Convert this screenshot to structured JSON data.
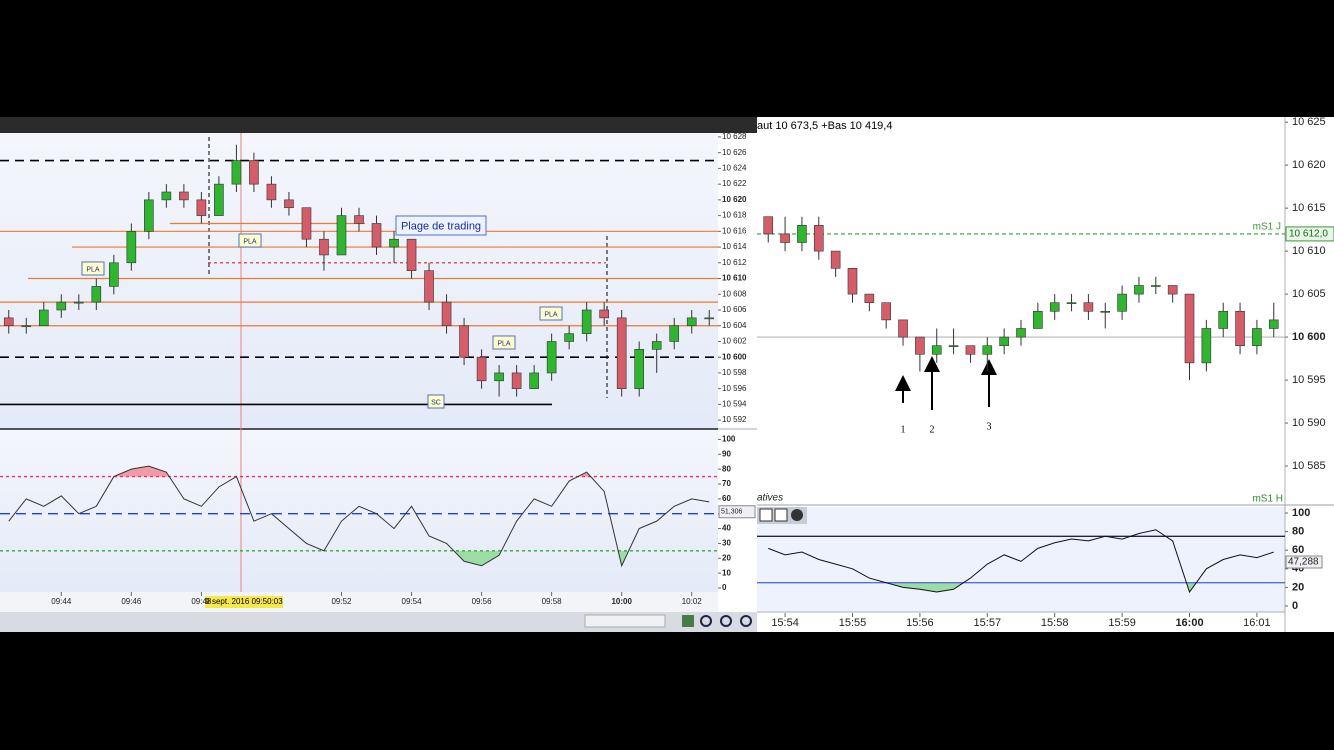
{
  "left": {
    "xlim": [
      "09:42:15",
      "10:02:45"
    ],
    "xticks": [
      "09:44",
      "09:46",
      "09:48",
      "09:52",
      "09:54",
      "09:56",
      "09:58",
      "10:00",
      "10:02"
    ],
    "cursor_label": "9 sept. 2016 09:50:03",
    "annotations": [
      "PLA",
      "PLA",
      "PLA",
      "PLA",
      "Plage de trading",
      "SC"
    ],
    "price": {
      "type": "candlestick",
      "up_color": "#2fb52f",
      "down_color": "#d45d6a",
      "bold_every": 10,
      "ylim": [
        10591,
        10628.5
      ],
      "yticks": [
        {
          "value": 10592,
          "label": "10 592"
        },
        {
          "value": 10594,
          "label": "10 594"
        },
        {
          "value": 10596,
          "label": "10 596"
        },
        {
          "value": 10598,
          "label": "10 598"
        },
        {
          "value": 10600,
          "label": "10 600"
        },
        {
          "value": 10602,
          "label": "10 602"
        },
        {
          "value": 10604,
          "label": "10 604"
        },
        {
          "value": 10606,
          "label": "10 606"
        },
        {
          "value": 10608,
          "label": "10 608"
        },
        {
          "value": 10610,
          "label": "10 610"
        },
        {
          "value": 10612,
          "label": "10 612"
        },
        {
          "value": 10614,
          "label": "10 614"
        },
        {
          "value": 10616,
          "label": "10 616"
        },
        {
          "value": 10618,
          "label": "10 618"
        },
        {
          "value": 10620,
          "label": "10 620"
        },
        {
          "value": 10622,
          "label": "10 622"
        },
        {
          "value": 10624,
          "label": "10 624"
        },
        {
          "value": 10626,
          "label": "10 626"
        },
        {
          "value": 10628,
          "label": "10 628"
        }
      ],
      "levels": [
        {
          "value": 10625,
          "color": "#000000",
          "dash": "9,6"
        },
        {
          "value": 10617,
          "color": "#f07830"
        },
        {
          "value": 10616,
          "color": "#f07830"
        },
        {
          "value": 10614,
          "color": "#f07830"
        },
        {
          "value": 10612,
          "color": "#e02020",
          "dash": "3,3"
        },
        {
          "value": 10610,
          "color": "#f07830"
        },
        {
          "value": 10607,
          "color": "#f07830"
        },
        {
          "value": 10604,
          "color": "#f07830"
        },
        {
          "value": 10600,
          "color": "#000000",
          "dash": "9,6"
        },
        {
          "value": 10594,
          "color": "#000000"
        }
      ],
      "x": [
        "09:42:30",
        "09:43:00",
        "09:43:30",
        "09:44:00",
        "09:44:30",
        "09:45:00",
        "09:45:30",
        "09:46:00",
        "09:46:30",
        "09:47:00",
        "09:47:30",
        "09:48:00",
        "09:48:30",
        "09:49:00",
        "09:49:30",
        "09:50:00",
        "09:50:30",
        "09:51:00",
        "09:51:30",
        "09:52:00",
        "09:52:30",
        "09:53:00",
        "09:53:30",
        "09:54:00",
        "09:54:30",
        "09:55:00",
        "09:55:30",
        "09:56:00",
        "09:56:30",
        "09:57:00",
        "09:57:30",
        "09:58:00",
        "09:58:30",
        "09:59:00",
        "09:59:30",
        "10:00:00",
        "10:00:30",
        "10:01:00",
        "10:01:30",
        "10:02:00",
        "10:02:30"
      ],
      "open": [
        10605,
        10604,
        10604,
        10606,
        10607,
        10607,
        10609,
        10612,
        10616,
        10620,
        10621,
        10620,
        10618,
        10622,
        10625,
        10622,
        10620,
        10619,
        10615,
        10613,
        10618,
        10617,
        10614,
        10615,
        10611,
        10607,
        10604,
        10600,
        10597,
        10598,
        10596,
        10598,
        10602,
        10603,
        10606,
        10605,
        10596,
        10601,
        10602,
        10604,
        10605
      ],
      "high": [
        10606,
        10605,
        10607,
        10608,
        10608,
        10610,
        10613,
        10617,
        10621,
        10622,
        10622,
        10621,
        10623,
        10627,
        10626,
        10623,
        10621,
        10619,
        10616,
        10619,
        10619,
        10618,
        10616,
        10615,
        10612,
        10608,
        10605,
        10601,
        10599,
        10599,
        10599,
        10603,
        10604,
        10607,
        10607,
        10606,
        10602,
        10603,
        10605,
        10606,
        10606
      ],
      "low": [
        10603,
        10603,
        10604,
        10605,
        10606,
        10606,
        10608,
        10611,
        10615,
        10619,
        10619,
        10617,
        10618,
        10621,
        10621,
        10619,
        10618,
        10614,
        10611,
        10613,
        10616,
        10613,
        10612,
        10610,
        10606,
        10603,
        10599,
        10596,
        10595,
        10595,
        10596,
        10597,
        10601,
        10602,
        10604,
        10595,
        10595,
        10598,
        10601,
        10603,
        10604
      ],
      "close": [
        10604,
        10604,
        10606,
        10607,
        10607,
        10609,
        10612,
        10616,
        10620,
        10621,
        10620,
        10618,
        10622,
        10625,
        10622,
        10620,
        10619,
        10615,
        10613,
        10618,
        10617,
        10614,
        10615,
        10611,
        10607,
        10604,
        10600,
        10597,
        10598,
        10596,
        10598,
        10602,
        10603,
        10606,
        10605,
        10596,
        10601,
        10602,
        10604,
        10605,
        10605
      ]
    },
    "oscillator": {
      "type": "line",
      "color": "#333333",
      "ylim": [
        0,
        105
      ],
      "yticks": [
        0,
        10,
        20,
        30,
        40,
        50,
        60,
        70,
        80,
        90,
        100
      ],
      "levels": [
        {
          "value": 75,
          "color": "#f0306a",
          "dash": "3,3",
          "fill": "#f29aa8"
        },
        {
          "value": 50,
          "color": "#2040e0",
          "dash": "10,6"
        },
        {
          "value": 25,
          "color": "#30b030",
          "dash": "3,3",
          "fill": "#9edca6"
        }
      ],
      "values": [
        45,
        60,
        55,
        62,
        50,
        55,
        75,
        80,
        82,
        78,
        60,
        55,
        68,
        75,
        45,
        50,
        40,
        30,
        25,
        45,
        55,
        50,
        40,
        55,
        35,
        30,
        18,
        15,
        22,
        45,
        60,
        55,
        72,
        78,
        65,
        15,
        40,
        45,
        55,
        60,
        58
      ],
      "last": {
        "value": 51.306,
        "label": "51,306"
      }
    }
  },
  "right": {
    "header": "aut 10 673,5 +Bas 10 419,4",
    "oscillator_title": "atives",
    "oscillator_level_name": "mS1 H",
    "arrow_labels": [
      "1",
      "2",
      "3"
    ],
    "xlim": [
      "15:53:35",
      "16:01:25"
    ],
    "xticks": [
      "15:54",
      "15:55",
      "15:56",
      "15:57",
      "15:58",
      "15:59",
      "16:00",
      "16:01"
    ],
    "price": {
      "type": "candlestick",
      "up_color": "#2fb52f",
      "down_color": "#d45d6a",
      "bold_every": 100,
      "ylim": [
        10580.7,
        10625.6
      ],
      "yticks": [
        {
          "value": 10585,
          "label": "10 585"
        },
        {
          "value": 10590,
          "label": "10 590"
        },
        {
          "value": 10595,
          "label": "10 595"
        },
        {
          "value": 10600,
          "label": "10 600"
        },
        {
          "value": 10605,
          "label": "10 605"
        },
        {
          "value": 10610,
          "label": "10 610"
        },
        {
          "value": 10615,
          "label": "10 615"
        },
        {
          "value": 10620,
          "label": "10 620"
        },
        {
          "value": 10625,
          "label": "10 625"
        }
      ],
      "levels": [
        {
          "value": 10612,
          "color": "#3a9a3a",
          "dash": "4,3",
          "name": "mS1 J",
          "label": "10 612,0"
        },
        {
          "value": 10600,
          "color": "#b8b8b8"
        }
      ],
      "x": [
        "15:53:45",
        "15:54:00",
        "15:54:15",
        "15:54:30",
        "15:54:45",
        "15:55:00",
        "15:55:15",
        "15:55:30",
        "15:55:45",
        "15:56:00",
        "15:56:15",
        "15:56:30",
        "15:56:45",
        "15:57:00",
        "15:57:15",
        "15:57:30",
        "15:57:45",
        "15:58:00",
        "15:58:15",
        "15:58:30",
        "15:58:45",
        "15:59:00",
        "15:59:15",
        "15:59:30",
        "15:59:45",
        "16:00:00",
        "16:00:15",
        "16:00:30",
        "16:00:45",
        "16:01:00",
        "16:01:15"
      ],
      "open": [
        10614,
        10612,
        10611,
        10613,
        10610,
        10608,
        10605,
        10604,
        10602,
        10600,
        10598,
        10599,
        10599,
        10598,
        10599,
        10600,
        10601,
        10603,
        10604,
        10604,
        10603,
        10603,
        10605,
        10606,
        10606,
        10605,
        10597,
        10601,
        10603,
        10599,
        10601
      ],
      "high": [
        10614,
        10614,
        10614,
        10614,
        10610,
        10608,
        10605,
        10604,
        10602,
        10600,
        10601,
        10601,
        10599,
        10600,
        10601,
        10602,
        10604,
        10605,
        10605,
        10605,
        10604,
        10606,
        10607,
        10607,
        10606,
        10605,
        10602,
        10604,
        10604,
        10602,
        10604
      ],
      "low": [
        10611,
        10610,
        10610,
        10609,
        10607,
        10604,
        10603,
        10601,
        10599,
        10596,
        10597,
        10598,
        10597,
        10596,
        10598,
        10599,
        10601,
        10602,
        10603,
        10602,
        10601,
        10602,
        10604,
        10605,
        10604,
        10595,
        10596,
        10600,
        10598,
        10598,
        10600
      ],
      "close": [
        10612,
        10611,
        10613,
        10610,
        10608,
        10605,
        10604,
        10602,
        10600,
        10598,
        10599,
        10599,
        10598,
        10599,
        10600,
        10601,
        10603,
        10604,
        10604,
        10603,
        10603,
        10605,
        10606,
        10606,
        10605,
        10597,
        10601,
        10603,
        10599,
        10601,
        10602
      ]
    },
    "oscillator": {
      "type": "line",
      "color": "#111111",
      "ylim": [
        -6.5,
        106.5
      ],
      "yticks": [
        0,
        20,
        40,
        60,
        80,
        100
      ],
      "levels": [
        {
          "value": 75,
          "color": "#202060"
        },
        {
          "value": 25,
          "color": "#5070e0",
          "fill": "#9edca6"
        }
      ],
      "values": [
        62,
        55,
        58,
        50,
        45,
        40,
        30,
        25,
        20,
        18,
        15,
        18,
        30,
        45,
        55,
        48,
        62,
        68,
        72,
        70,
        75,
        72,
        78,
        82,
        70,
        15,
        40,
        50,
        55,
        52,
        58
      ],
      "last": {
        "value": 47.288,
        "label": "47,288"
      }
    }
  }
}
